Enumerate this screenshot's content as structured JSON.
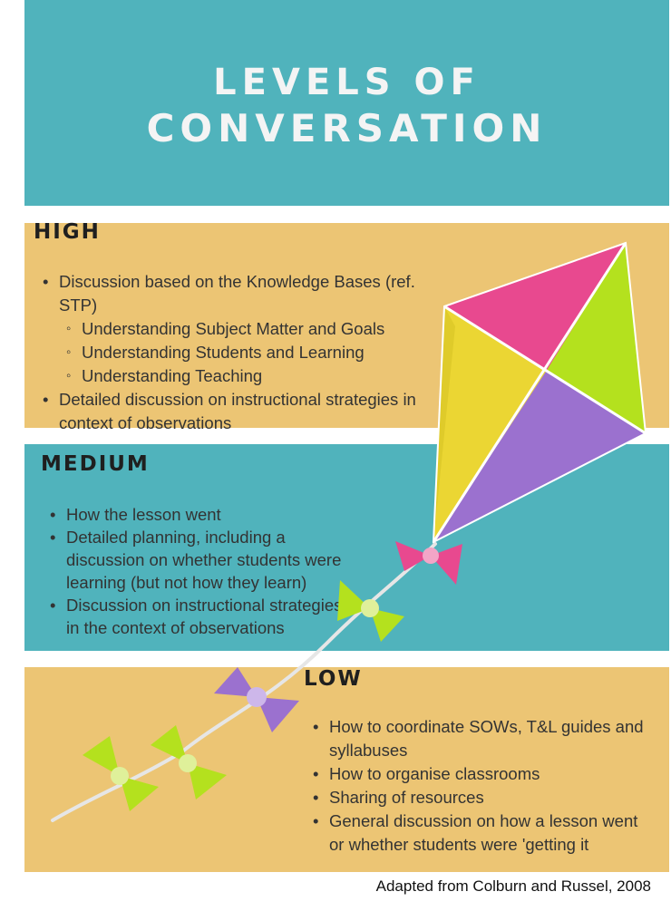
{
  "title": {
    "line1": "LEVELS OF",
    "line2": "CONVERSATION"
  },
  "high": {
    "heading": "HIGH",
    "item1": "Discussion based on the Knowledge Bases (ref. STP)",
    "sub1": "Understanding Subject Matter and Goals",
    "sub2": "Understanding Students and Learning",
    "sub3": "Understanding Teaching",
    "item2": "Detailed discussion on instructional strategies in context of observations"
  },
  "medium": {
    "heading": "MEDIUM",
    "item1": "How the lesson went",
    "item2": "Detailed planning, including a discussion on whether students were learning (but not how they learn)",
    "item3": "Discussion on instructional strategies in the context of observations"
  },
  "low": {
    "heading": "LOW",
    "item1": "How to coordinate SOWs, T&L guides and syllabuses",
    "item2": "How to organise classrooms",
    "item3": "Sharing of resources",
    "item4": "General discussion on how a lesson went or whether students were 'getting it"
  },
  "credit": "Adapted from Colburn and Russel, 2008",
  "colors": {
    "teal": "#50b3bc",
    "sand": "#ecc574",
    "kite_pink": "#e8498f",
    "kite_green": "#b4e11e",
    "kite_yellow": "#ebd633",
    "kite_purple": "#9b71cf"
  }
}
